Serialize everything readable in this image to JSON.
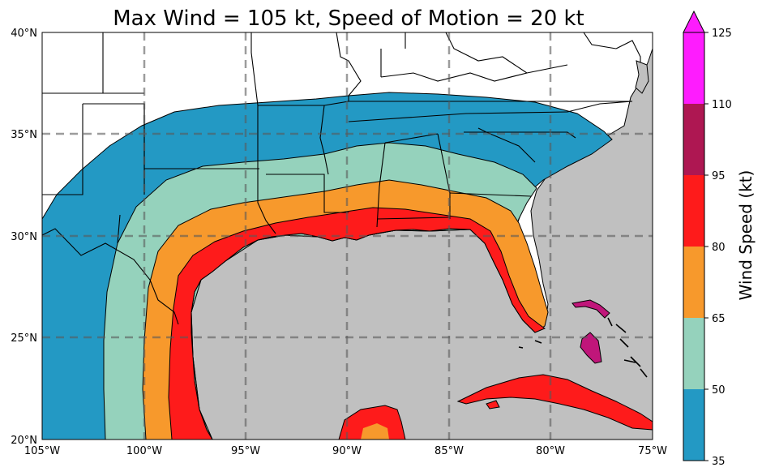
{
  "title": "Max Wind = 105 kt, Speed of Motion = 20 kt",
  "colors": {
    "land": "#ffffff",
    "sea": "#c0c0c0",
    "c35_50": "#2399c4",
    "c50_65": "#95d2bc",
    "c65_80": "#f7992c",
    "c80_95": "#fe1b1b",
    "c95_110": "#ae1752",
    "c110_125": "#fe1cfe",
    "islands": "#c0167a"
  },
  "axes": {
    "lon_range": [
      -105,
      -75
    ],
    "lat_range": [
      20,
      40
    ],
    "x_ticks": [
      "105°W",
      "100°W",
      "95°W",
      "90°W",
      "85°W",
      "80°W",
      "75°W"
    ],
    "y_ticks": [
      "20°N",
      "25°N",
      "30°N",
      "35°N",
      "40°N"
    ]
  },
  "colorbar": {
    "label": "Wind Speed (kt)",
    "ticks": [
      "35",
      "50",
      "65",
      "80",
      "95",
      "110",
      "125"
    ]
  },
  "chart_data": {
    "type": "heatmap",
    "title": "Max Wind = 105 kt, Speed of Motion = 20 kt",
    "xlim": [
      -105,
      -75
    ],
    "ylim": [
      20,
      40
    ],
    "grid": true,
    "colorbar_label": "Wind Speed (kt)",
    "levels": [
      35,
      50,
      65,
      80,
      95,
      110,
      125
    ],
    "bins": [
      {
        "range": [
          35,
          50
        ],
        "color": "#2399c4"
      },
      {
        "range": [
          50,
          65
        ],
        "color": "#95d2bc"
      },
      {
        "range": [
          65,
          80
        ],
        "color": "#f7992c"
      },
      {
        "range": [
          80,
          95
        ],
        "color": "#fe1b1b"
      },
      {
        "range": [
          95,
          110
        ],
        "color": "#ae1752"
      },
      {
        "range": [
          110,
          125
        ],
        "color": "#fe1cfe"
      }
    ]
  }
}
